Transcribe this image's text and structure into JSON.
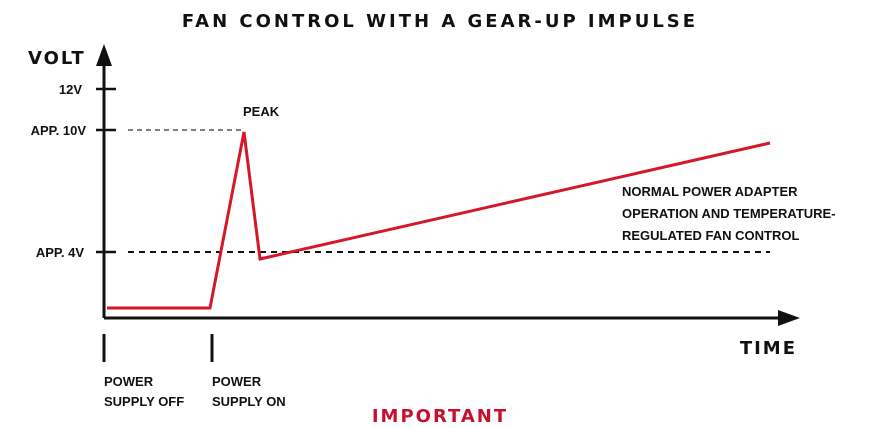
{
  "title": "FAN CONTROL WITH A GEAR-UP IMPULSE",
  "y_axis_label": "VOLT",
  "x_axis_label": "TIME",
  "y_ticks": [
    "12V",
    "APP. 10V",
    "APP. 4V"
  ],
  "peak_label": "PEAK",
  "annotation": {
    "line1": "NORMAL POWER ADAPTER",
    "line2": "OPERATION AND TEMPERATURE-",
    "line3": "REGULATED FAN CONTROL"
  },
  "events": {
    "off": {
      "line1": "POWER",
      "line2": "SUPPLY OFF"
    },
    "on": {
      "line1": "POWER",
      "line2": "SUPPLY ON"
    }
  },
  "footer": "IMPORTANT",
  "colors": {
    "curve": "#d4182a",
    "axis": "#111111",
    "footer": "#c8102e"
  }
}
